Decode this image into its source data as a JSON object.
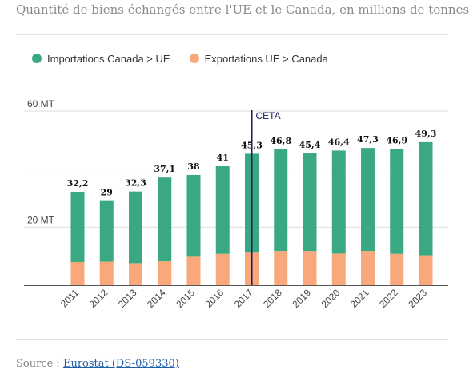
{
  "subtitle": "Quantité de biens échangés entre l'UE et le Canada, en millions de tonnes",
  "legend": [
    {
      "label": "Importations Canada > UE",
      "color": "#3aa981"
    },
    {
      "label": "Exportations UE > Canada",
      "color": "#f8a87a"
    }
  ],
  "annotation": {
    "label": "CETA",
    "year": "2017",
    "color": "#1a1a5e"
  },
  "source": {
    "prefix": "Source :",
    "link": "Eurostat (DS-059330)"
  },
  "chart_data": {
    "type": "bar",
    "stacked": true,
    "title": "",
    "xlabel": "",
    "ylabel": "",
    "categories": [
      "2011",
      "2012",
      "2013",
      "2014",
      "2015",
      "2016",
      "2017",
      "2018",
      "2019",
      "2020",
      "2021",
      "2022",
      "2023"
    ],
    "series": [
      {
        "name": "Exportations UE > Canada",
        "color": "#f8a87a",
        "values": [
          8.0,
          8.1,
          7.6,
          8.2,
          9.8,
          10.8,
          11.2,
          11.8,
          11.8,
          10.9,
          11.8,
          10.8,
          10.3
        ]
      },
      {
        "name": "Importations Canada > UE",
        "color": "#3aa981",
        "values": [
          24.2,
          20.9,
          24.7,
          28.9,
          28.2,
          30.2,
          34.1,
          35.0,
          33.6,
          35.5,
          35.5,
          36.1,
          39.0
        ]
      }
    ],
    "totals": [
      32.2,
      29,
      32.3,
      37.1,
      38,
      41,
      45.3,
      46.8,
      45.4,
      46.4,
      47.3,
      46.9,
      49.3
    ],
    "total_labels": [
      "32,2",
      "29",
      "32,3",
      "37,1",
      "38",
      "41",
      "45,3",
      "46,8",
      "45,4",
      "46,4",
      "47,3",
      "46,9",
      "49,3"
    ],
    "ylim": [
      0,
      60
    ],
    "yticks": [
      {
        "value": 20,
        "label": "20 MT"
      },
      {
        "value": 60,
        "label": "60 MT"
      }
    ],
    "gridlines": [
      20,
      40,
      60
    ],
    "grid": true,
    "legend_position": "top-left"
  }
}
